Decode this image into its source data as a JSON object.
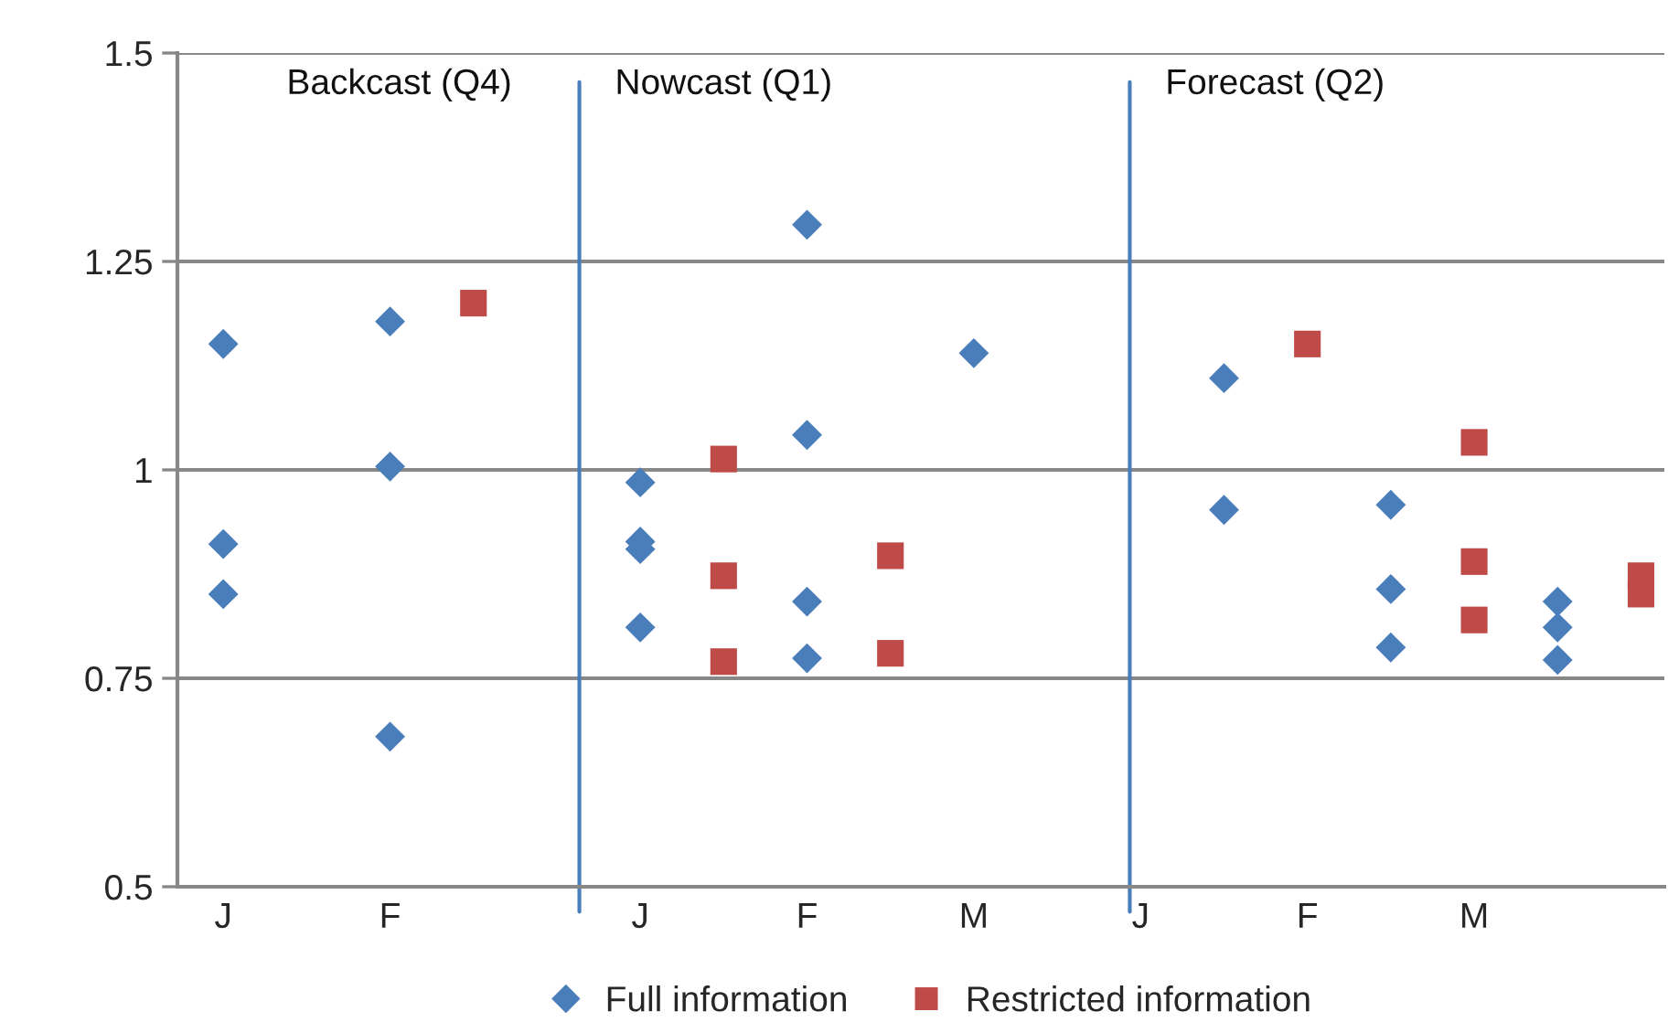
{
  "chart_data": {
    "type": "scatter",
    "categories": [
      "J",
      null,
      "F",
      null,
      null,
      "J",
      null,
      "F",
      null,
      "M",
      null,
      "J",
      null,
      "F",
      null,
      "M",
      null,
      null
    ],
    "ylim": [
      0.5,
      1.5
    ],
    "yticks": [
      0.5,
      0.75,
      1,
      1.25,
      1.5
    ],
    "grid": "y",
    "legend": "bottom",
    "series": [
      {
        "name": "Full information",
        "color": "#4a7ebb",
        "marker": "diamond",
        "values": [
          1.151,
          null,
          1.178,
          null,
          null,
          0.985,
          null,
          1.294,
          null,
          1.14,
          null,
          null,
          1.11,
          null,
          0.958,
          null,
          0.842,
          null
        ]
      },
      {
        "color": "#4a7ebb",
        "marker": "diamond",
        "values": [
          0.911,
          null,
          1.004,
          null,
          null,
          0.914,
          null,
          1.042,
          null,
          null,
          null,
          null,
          0.952,
          null,
          0.857,
          null,
          0.811,
          null
        ]
      },
      {
        "color": "#4a7ebb",
        "marker": "diamond",
        "values": [
          0.851,
          null,
          0.68,
          null,
          null,
          0.905,
          null,
          0.842,
          null,
          null,
          null,
          null,
          null,
          null,
          0.787,
          null,
          0.772,
          null
        ]
      },
      {
        "color": "#4a7ebb",
        "marker": "diamond",
        "values": [
          null,
          null,
          null,
          null,
          null,
          0.811,
          null,
          0.774,
          null,
          null,
          null,
          null,
          null,
          null,
          null,
          null,
          null,
          null
        ]
      },
      {
        "name": "Restricted information",
        "color": "#be4b48",
        "marker": "square",
        "values": [
          null,
          null,
          null,
          1.2,
          null,
          null,
          1.013,
          null,
          0.897,
          null,
          null,
          null,
          null,
          1.151,
          null,
          1.033,
          null,
          0.873
        ]
      },
      {
        "color": "#be4b48",
        "marker": "square",
        "values": [
          null,
          null,
          null,
          null,
          null,
          null,
          0.873,
          null,
          0.78,
          null,
          null,
          null,
          null,
          null,
          null,
          0.89,
          null,
          0.851
        ]
      },
      {
        "color": "#be4b48",
        "marker": "square",
        "values": [
          null,
          null,
          null,
          null,
          null,
          null,
          0.77,
          null,
          null,
          null,
          null,
          null,
          null,
          null,
          null,
          0.82,
          null,
          null
        ]
      }
    ],
    "annotations": [
      "Backcast (Q4)",
      "Nowcast (Q1)",
      "Forecast (Q2)"
    ]
  }
}
